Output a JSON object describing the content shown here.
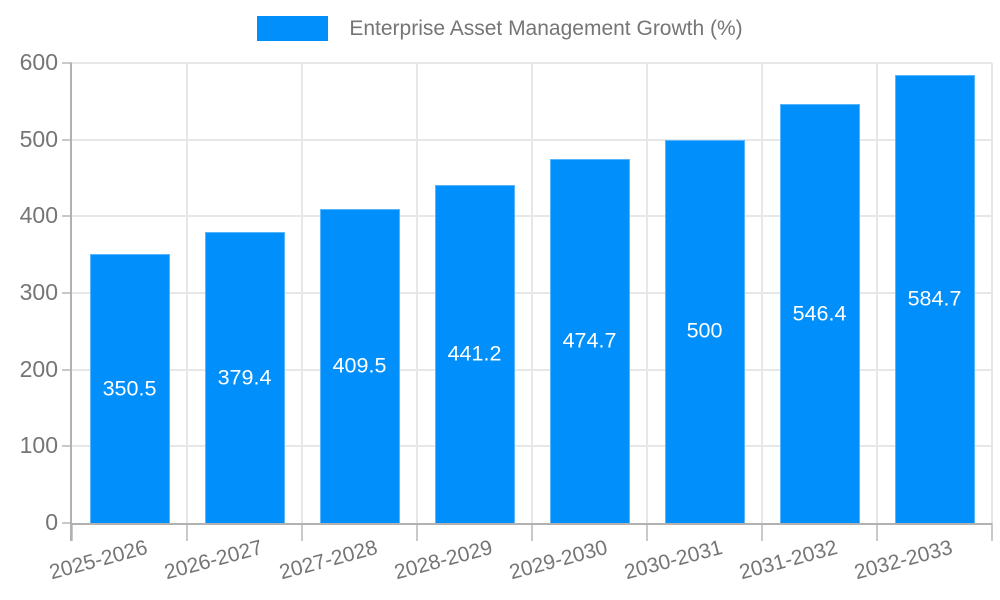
{
  "chart_data": {
    "type": "bar",
    "title": "Enterprise Asset Management Growth (%)",
    "categories": [
      "2025-2026",
      "2026-2027",
      "2027-2028",
      "2028-2029",
      "2029-2030",
      "2030-2031",
      "2031-2032",
      "2032-2033"
    ],
    "values": [
      350.5,
      379.4,
      409.5,
      441.2,
      474.7,
      500,
      546.4,
      584.7
    ],
    "value_labels": [
      "350.5",
      "379.4",
      "409.5",
      "441.2",
      "474.7",
      "500",
      "546.4",
      "584.7"
    ],
    "xlabel": "",
    "ylabel": "",
    "ylim": [
      0,
      600
    ],
    "yticks": [
      0,
      100,
      200,
      300,
      400,
      500,
      600
    ],
    "grid": true,
    "legend_position": "top",
    "bar_labels_position": "center-of-bar",
    "colors": {
      "bar": "#008FFB",
      "grid": "#e7e7e7",
      "axis_line": "#b1b1b1",
      "tick": "#c9c9c9",
      "axis_text": "#757575",
      "value_text": "#ffffff"
    }
  },
  "legend": {
    "label": "Enterprise Asset Management Growth (%)"
  }
}
